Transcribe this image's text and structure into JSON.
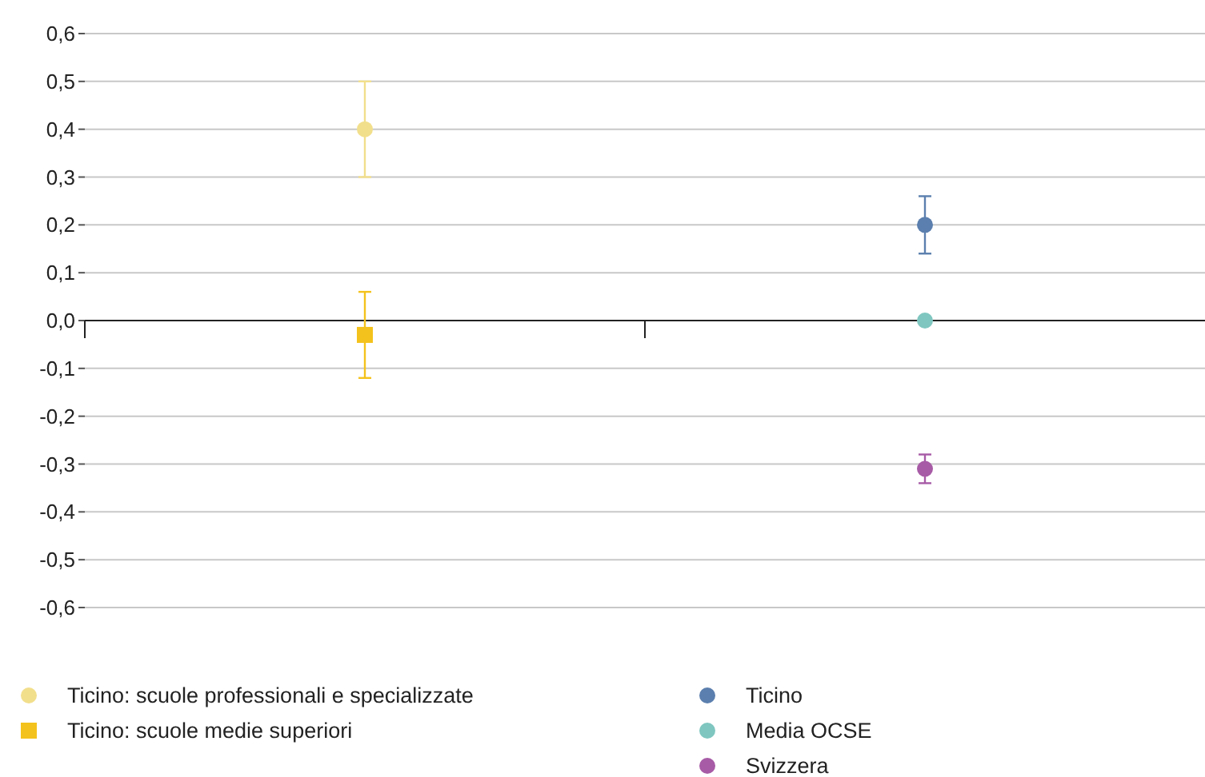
{
  "chart_data": {
    "type": "scatter",
    "categories": [
      null,
      null
    ],
    "series": [
      {
        "name": "Ticino: scuole professionali e specializzate",
        "color": "#f2df8c",
        "marker": "circle",
        "values": [
          0.4,
          null
        ],
        "errors": [
          [
            0.3,
            0.5
          ],
          null
        ]
      },
      {
        "name": "Ticino: scuole medie superiori",
        "color": "#f4c21c",
        "marker": "square",
        "values": [
          -0.03,
          null
        ],
        "errors": [
          [
            -0.12,
            0.06
          ],
          null
        ]
      },
      {
        "name": "Ticino",
        "color": "#5b7fae",
        "marker": "circle",
        "values": [
          null,
          0.2
        ],
        "errors": [
          null,
          [
            0.14,
            0.26
          ]
        ]
      },
      {
        "name": "Media OCSE",
        "color": "#7fc6c0",
        "marker": "circle",
        "values": [
          null,
          0
        ],
        "errors": [
          null,
          null
        ]
      },
      {
        "name": "Svizzera",
        "color": "#a75ba6",
        "marker": "circle",
        "values": [
          null,
          -0.31
        ],
        "errors": [
          null,
          [
            -0.34,
            -0.28
          ]
        ]
      }
    ],
    "ylim": [
      -0.6,
      0.6
    ],
    "yticks": [
      {
        "value": -0.6,
        "label": "-0,6"
      },
      {
        "value": -0.5,
        "label": "-0,5"
      },
      {
        "value": -0.4,
        "label": "-0,4"
      },
      {
        "value": -0.3,
        "label": "-0,3"
      },
      {
        "value": -0.2,
        "label": "-0,2"
      },
      {
        "value": -0.1,
        "label": "-0,1"
      },
      {
        "value": 0,
        "label": "0,0"
      },
      {
        "value": 0.1,
        "label": "0,1"
      },
      {
        "value": 0.2,
        "label": "0,2"
      },
      {
        "value": 0.3,
        "label": "0,3"
      },
      {
        "value": 0.4,
        "label": "0,4"
      },
      {
        "value": 0.5,
        "label": "0,5"
      },
      {
        "value": 0.6,
        "label": "0,6"
      }
    ],
    "grid": "y",
    "legend": "bottom"
  }
}
